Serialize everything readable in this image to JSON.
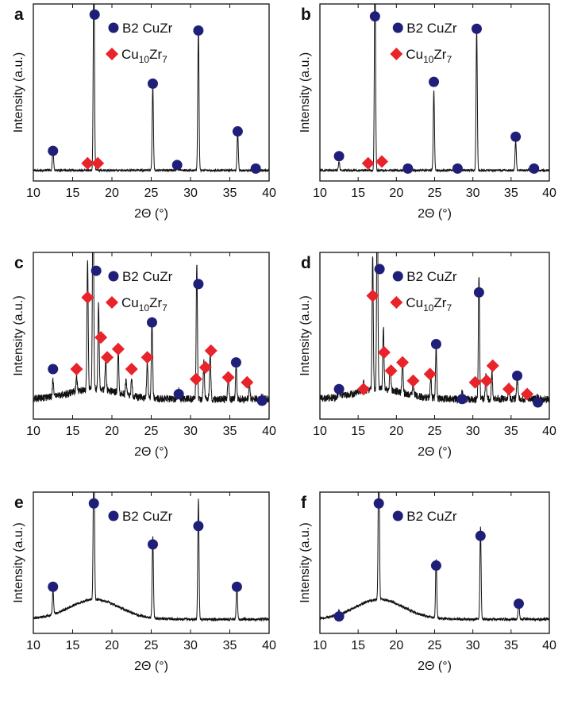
{
  "figure": {
    "x_axis_label": "2Θ (°)",
    "y_axis_label": "Intensity (a.u.)",
    "legend": {
      "phase1": "B2 CuZr",
      "phase2": {
        "base1": "Cu",
        "sub1": "10",
        "base2": "Zr",
        "sub2": "7"
      }
    },
    "colors": {
      "b2_marker": "#1f1f7a",
      "cu10zr7_marker": "#e8232a",
      "trace": "#111111"
    }
  },
  "chart_data": [
    {
      "panel": "a",
      "type": "line",
      "xlim": [
        10,
        40
      ],
      "xticks": [
        10,
        15,
        20,
        25,
        30,
        35,
        40
      ],
      "ylim": [
        0,
        100
      ],
      "show_cu10zr7": true,
      "noise": 0.6,
      "baseline": 6,
      "hump": 0,
      "peaks": [
        {
          "x": 12.5,
          "h": 12
        },
        {
          "x": 17.7,
          "h": 115
        },
        {
          "x": 25.2,
          "h": 48
        },
        {
          "x": 28.3,
          "h": 4
        },
        {
          "x": 31.0,
          "h": 80
        },
        {
          "x": 36.0,
          "h": 22
        },
        {
          "x": 38.3,
          "h": 2
        }
      ],
      "b2_markers": [
        [
          12.5,
          17
        ],
        [
          17.8,
          94
        ],
        [
          25.2,
          55
        ],
        [
          28.3,
          9
        ],
        [
          31.0,
          85
        ],
        [
          36.0,
          28
        ],
        [
          38.3,
          7
        ]
      ],
      "cu10zr7_markers": [
        [
          16.9,
          10
        ],
        [
          18.2,
          10
        ]
      ]
    },
    {
      "panel": "b",
      "type": "line",
      "xlim": [
        10,
        40
      ],
      "xticks": [
        10,
        15,
        20,
        25,
        30,
        35,
        40
      ],
      "ylim": [
        0,
        100
      ],
      "show_cu10zr7": true,
      "noise": 0.6,
      "baseline": 6,
      "hump": 0,
      "peaks": [
        {
          "x": 12.5,
          "h": 5
        },
        {
          "x": 17.2,
          "h": 115
        },
        {
          "x": 21.5,
          "h": 2
        },
        {
          "x": 24.9,
          "h": 45
        },
        {
          "x": 28.0,
          "h": 2
        },
        {
          "x": 30.5,
          "h": 80
        },
        {
          "x": 35.6,
          "h": 17
        },
        {
          "x": 38.0,
          "h": 2
        }
      ],
      "b2_markers": [
        [
          12.5,
          14
        ],
        [
          17.2,
          93
        ],
        [
          21.5,
          7
        ],
        [
          24.9,
          56
        ],
        [
          28.0,
          7
        ],
        [
          30.5,
          86
        ],
        [
          35.6,
          25
        ],
        [
          38.0,
          7
        ]
      ],
      "cu10zr7_markers": [
        [
          16.3,
          10
        ],
        [
          18.1,
          11
        ]
      ]
    },
    {
      "panel": "c",
      "type": "line",
      "xlim": [
        10,
        40
      ],
      "xticks": [
        10,
        15,
        20,
        25,
        30,
        35,
        40
      ],
      "ylim": [
        0,
        100
      ],
      "show_cu10zr7": true,
      "noise": 2.2,
      "baseline": 12,
      "hump": 6,
      "peaks": [
        {
          "x": 12.5,
          "h": 10
        },
        {
          "x": 15.5,
          "h": 8
        },
        {
          "x": 16.9,
          "h": 78
        },
        {
          "x": 17.6,
          "h": 130
        },
        {
          "x": 18.3,
          "h": 52
        },
        {
          "x": 19.2,
          "h": 18
        },
        {
          "x": 20.8,
          "h": 26
        },
        {
          "x": 21.8,
          "h": 9
        },
        {
          "x": 22.5,
          "h": 10
        },
        {
          "x": 24.5,
          "h": 22
        },
        {
          "x": 25.1,
          "h": 48
        },
        {
          "x": 28.5,
          "h": 5
        },
        {
          "x": 30.8,
          "h": 82
        },
        {
          "x": 31.7,
          "h": 22
        },
        {
          "x": 32.5,
          "h": 28
        },
        {
          "x": 34.8,
          "h": 14
        },
        {
          "x": 35.8,
          "h": 20
        },
        {
          "x": 37.5,
          "h": 10
        },
        {
          "x": 39.1,
          "h": 3
        }
      ],
      "b2_markers": [
        [
          12.5,
          30
        ],
        [
          18.0,
          89
        ],
        [
          25.1,
          58
        ],
        [
          28.5,
          15
        ],
        [
          31.0,
          81
        ],
        [
          35.8,
          34
        ],
        [
          39.1,
          11
        ]
      ],
      "cu10zr7_markers": [
        [
          15.5,
          30
        ],
        [
          16.9,
          73
        ],
        [
          18.6,
          49
        ],
        [
          19.4,
          37
        ],
        [
          20.8,
          42
        ],
        [
          22.5,
          30
        ],
        [
          24.5,
          37
        ],
        [
          30.7,
          24
        ],
        [
          31.9,
          31
        ],
        [
          32.6,
          41
        ],
        [
          34.8,
          25
        ],
        [
          37.2,
          22
        ]
      ]
    },
    {
      "panel": "d",
      "type": "line",
      "xlim": [
        10,
        40
      ],
      "xticks": [
        10,
        15,
        20,
        25,
        30,
        35,
        40
      ],
      "ylim": [
        0,
        100
      ],
      "show_cu10zr7": true,
      "noise": 2.2,
      "baseline": 12,
      "hump": 6,
      "peaks": [
        {
          "x": 12.5,
          "h": 5
        },
        {
          "x": 15.7,
          "h": 5
        },
        {
          "x": 16.9,
          "h": 80
        },
        {
          "x": 17.5,
          "h": 130
        },
        {
          "x": 18.3,
          "h": 38
        },
        {
          "x": 19.2,
          "h": 14
        },
        {
          "x": 20.8,
          "h": 20
        },
        {
          "x": 22.2,
          "h": 8
        },
        {
          "x": 24.5,
          "h": 12
        },
        {
          "x": 25.2,
          "h": 30
        },
        {
          "x": 28.6,
          "h": 4
        },
        {
          "x": 30.8,
          "h": 75
        },
        {
          "x": 31.7,
          "h": 14
        },
        {
          "x": 32.5,
          "h": 16
        },
        {
          "x": 34.7,
          "h": 9
        },
        {
          "x": 35.8,
          "h": 15
        },
        {
          "x": 37.0,
          "h": 5
        },
        {
          "x": 38.5,
          "h": 2
        }
      ],
      "b2_markers": [
        [
          12.5,
          18
        ],
        [
          17.8,
          90
        ],
        [
          25.2,
          45
        ],
        [
          28.6,
          12
        ],
        [
          30.8,
          76
        ],
        [
          35.8,
          26
        ],
        [
          38.5,
          10
        ]
      ],
      "cu10zr7_markers": [
        [
          15.7,
          18
        ],
        [
          16.9,
          74
        ],
        [
          18.4,
          40
        ],
        [
          19.3,
          29
        ],
        [
          20.8,
          34
        ],
        [
          22.2,
          23
        ],
        [
          24.4,
          27
        ],
        [
          30.3,
          22
        ],
        [
          31.8,
          23
        ],
        [
          32.6,
          32
        ],
        [
          34.7,
          18
        ],
        [
          37.1,
          15
        ]
      ]
    },
    {
      "panel": "e",
      "type": "line",
      "xlim": [
        10,
        40
      ],
      "xticks": [
        10,
        15,
        20,
        25,
        30,
        35,
        40
      ],
      "ylim": [
        0,
        100
      ],
      "show_cu10zr7": false,
      "noise": 0.9,
      "baseline": 10,
      "hump": 14,
      "peaks": [
        {
          "x": 12.5,
          "h": 17
        },
        {
          "x": 17.7,
          "h": 115
        },
        {
          "x": 25.2,
          "h": 58
        },
        {
          "x": 31.0,
          "h": 85
        },
        {
          "x": 35.9,
          "h": 25
        }
      ],
      "b2_markers": [
        [
          12.5,
          33
        ],
        [
          17.7,
          92
        ],
        [
          25.2,
          63
        ],
        [
          31.0,
          76
        ],
        [
          35.9,
          33
        ]
      ],
      "cu10zr7_markers": []
    },
    {
      "panel": "f",
      "type": "line",
      "xlim": [
        10,
        40
      ],
      "xticks": [
        10,
        15,
        20,
        25,
        30,
        35,
        40
      ],
      "ylim": [
        0,
        100
      ],
      "show_cu10zr7": false,
      "noise": 0.9,
      "baseline": 10,
      "hump": 14,
      "peaks": [
        {
          "x": 12.5,
          "h": 3
        },
        {
          "x": 17.7,
          "h": 115
        },
        {
          "x": 25.2,
          "h": 42
        },
        {
          "x": 31.0,
          "h": 65
        },
        {
          "x": 36.0,
          "h": 14
        }
      ],
      "b2_markers": [
        [
          12.5,
          12
        ],
        [
          17.7,
          92
        ],
        [
          25.2,
          48
        ],
        [
          31.0,
          69
        ],
        [
          36.0,
          21
        ]
      ],
      "cu10zr7_markers": []
    }
  ]
}
